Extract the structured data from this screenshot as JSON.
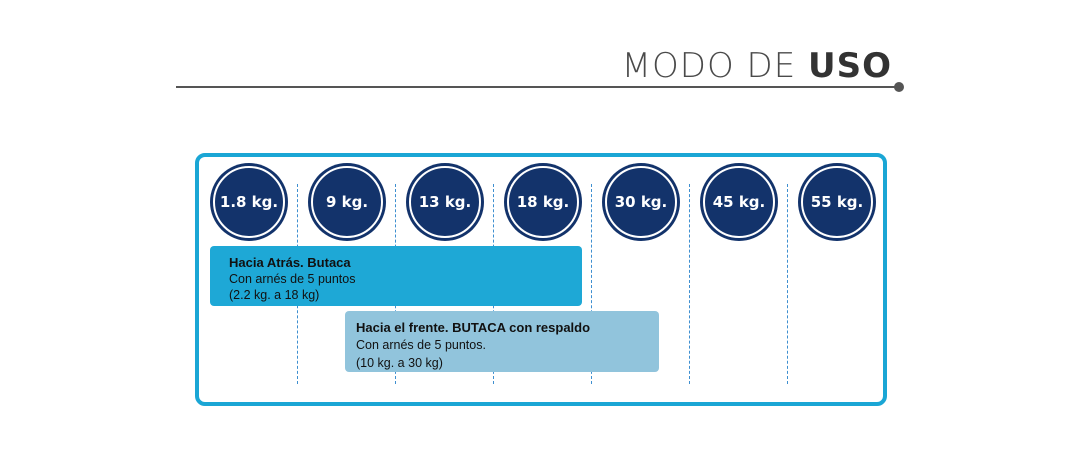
{
  "header": {
    "title_light": "MODO DE ",
    "title_bold": "USO"
  },
  "weights": [
    "1.8 kg.",
    "9 kg.",
    "13 kg.",
    "18 kg.",
    "30 kg.",
    "45 kg.",
    "55 kg."
  ],
  "modes": [
    {
      "title": "Hacia Atrás. Butaca",
      "line1": "Con arnés de 5 puntos",
      "line2": "(2.2 kg. a 18 kg)",
      "color": "#1ea8d6"
    },
    {
      "title": "Hacia el frente. BUTACA con respaldo",
      "line1": "Con arnés de 5 puntos.",
      "line2": "(10 kg. a 30 kg)",
      "color": "#91c4dc"
    }
  ],
  "colors": {
    "frame": "#1aa6d5",
    "circle": "#13336b",
    "divider": "#3e8fd0",
    "rule": "#555555"
  }
}
